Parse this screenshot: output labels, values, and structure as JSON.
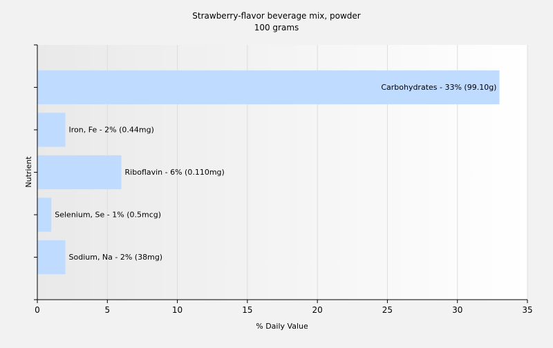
{
  "chart_data": {
    "type": "bar",
    "orientation": "horizontal",
    "title": "Strawberry-flavor beverage mix, powder",
    "subtitle": "100 grams",
    "xlabel": "% Daily Value",
    "ylabel": "Nutrient",
    "xlim": [
      0,
      35
    ],
    "xticks": [
      "0",
      "5",
      "10",
      "15",
      "20",
      "25",
      "30",
      "35"
    ],
    "grid": true,
    "categories": [
      "Carbohydrates",
      "Iron, Fe",
      "Riboflavin",
      "Selenium, Se",
      "Sodium, Na"
    ],
    "values": [
      33,
      2,
      6,
      1,
      2
    ],
    "data_labels": [
      "Carbohydrates - 33% (99.10g)",
      "Iron, Fe - 2% (0.44mg)",
      "Riboflavin - 6% (0.110mg)",
      "Selenium, Se - 1% (0.5mcg)",
      "Sodium, Na - 2% (38mg)"
    ],
    "bar_color": "#bfdbff",
    "gridline_color": "#dcdcdc",
    "background_gradient": [
      "#e9e9e9",
      "#ffffff"
    ]
  }
}
